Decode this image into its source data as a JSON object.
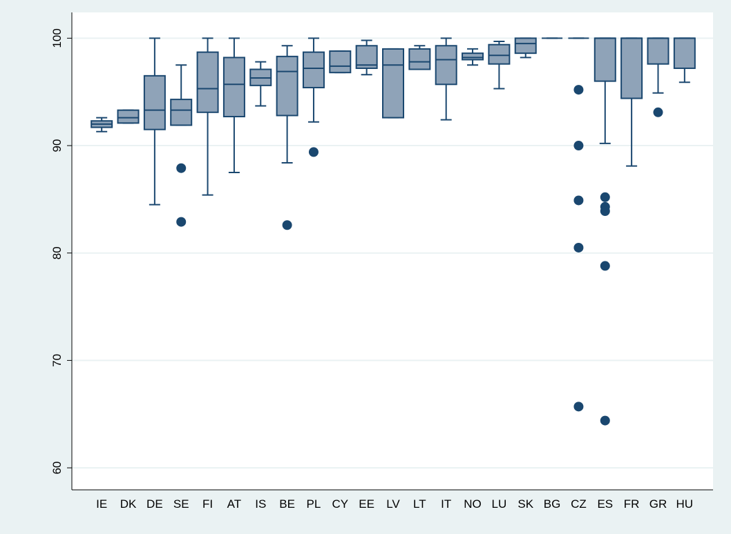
{
  "chart_data": {
    "type": "box",
    "categories": [
      "IE",
      "DK",
      "DE",
      "SE",
      "FI",
      "AT",
      "IS",
      "BE",
      "PL",
      "CY",
      "EE",
      "LV",
      "LT",
      "IT",
      "NO",
      "LU",
      "SK",
      "BG",
      "CZ",
      "ES",
      "FR",
      "GR",
      "HU"
    ],
    "whisker_low": [
      91.3,
      92.1,
      84.5,
      91.9,
      85.4,
      87.5,
      93.7,
      88.4,
      92.2,
      96.8,
      96.6,
      92.6,
      97.1,
      92.4,
      97.5,
      95.3,
      98.2,
      100,
      100,
      90.2,
      88.1,
      94.9,
      95.9
    ],
    "q1": [
      91.7,
      92.1,
      91.5,
      91.9,
      93.1,
      92.7,
      95.6,
      92.8,
      95.4,
      96.8,
      97.2,
      92.6,
      97.1,
      95.7,
      98.0,
      97.6,
      98.6,
      100,
      100,
      96.0,
      94.4,
      97.6,
      97.2
    ],
    "median": [
      92.0,
      92.6,
      93.3,
      93.3,
      95.3,
      95.7,
      96.3,
      96.9,
      97.2,
      97.4,
      97.5,
      97.5,
      97.8,
      98.0,
      98.2,
      98.4,
      99.5,
      100,
      100,
      100,
      100,
      100,
      100
    ],
    "q3": [
      92.3,
      93.3,
      96.5,
      94.3,
      98.7,
      98.2,
      97.1,
      98.3,
      98.7,
      98.8,
      99.3,
      99.0,
      99.0,
      99.3,
      98.6,
      99.4,
      100,
      100,
      100,
      100,
      100,
      100,
      100
    ],
    "whisker_high": [
      92.6,
      93.3,
      100,
      97.5,
      100,
      100,
      97.8,
      99.3,
      100,
      98.8,
      99.8,
      99.0,
      99.3,
      100,
      99.0,
      99.7,
      100,
      100,
      100,
      100,
      100,
      100,
      100
    ],
    "outliers": [
      [],
      [],
      [],
      [
        87.9,
        82.9
      ],
      [],
      [],
      [],
      [
        82.6
      ],
      [
        89.4
      ],
      [],
      [],
      [],
      [],
      [],
      [],
      [],
      [],
      [],
      [
        95.2,
        90.0,
        84.9,
        80.5,
        65.7
      ],
      [
        85.2,
        84.3,
        83.9,
        78.8,
        64.4
      ],
      [],
      [
        93.1
      ],
      []
    ],
    "box_color": "#8fa3b8",
    "line_color": "#1a476f",
    "ylim": [
      57.95,
      102.4
    ],
    "yticks": [
      60,
      70,
      80,
      90,
      100
    ],
    "grid": true
  }
}
